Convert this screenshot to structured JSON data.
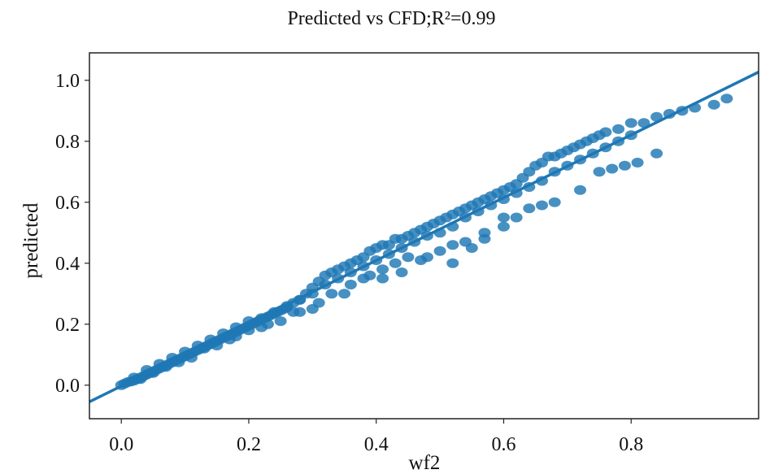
{
  "chart_data": {
    "type": "scatter",
    "title": "Predicted vs CFD;R²=0.99",
    "xlabel": "wf2",
    "ylabel": "predicted",
    "xlim": [
      -0.05,
      1.0
    ],
    "ylim": [
      -0.11,
      1.09
    ],
    "x_ticks": [
      "0.0",
      "0.2",
      "0.4",
      "0.6",
      "0.8"
    ],
    "y_ticks": [
      "0.0",
      "0.2",
      "0.4",
      "0.6",
      "0.8",
      "1.0"
    ],
    "grid": false,
    "colors": {
      "points": "#1f77b4",
      "fit_line": "#1f77b4",
      "axes": "#222222"
    },
    "fit_line": {
      "slope": 1.03,
      "intercept": -0.003
    },
    "points": [
      [
        0.0,
        0.0
      ],
      [
        0.005,
        0.005
      ],
      [
        0.01,
        0.01
      ],
      [
        0.015,
        0.012
      ],
      [
        0.02,
        0.015
      ],
      [
        0.025,
        0.02
      ],
      [
        0.03,
        0.025
      ],
      [
        0.035,
        0.03
      ],
      [
        0.04,
        0.035
      ],
      [
        0.045,
        0.04
      ],
      [
        0.05,
        0.045
      ],
      [
        0.055,
        0.05
      ],
      [
        0.06,
        0.055
      ],
      [
        0.065,
        0.06
      ],
      [
        0.07,
        0.065
      ],
      [
        0.075,
        0.07
      ],
      [
        0.08,
        0.075
      ],
      [
        0.085,
        0.08
      ],
      [
        0.09,
        0.085
      ],
      [
        0.095,
        0.09
      ],
      [
        0.1,
        0.095
      ],
      [
        0.105,
        0.1
      ],
      [
        0.11,
        0.105
      ],
      [
        0.115,
        0.11
      ],
      [
        0.12,
        0.115
      ],
      [
        0.125,
        0.12
      ],
      [
        0.13,
        0.125
      ],
      [
        0.135,
        0.13
      ],
      [
        0.14,
        0.135
      ],
      [
        0.145,
        0.14
      ],
      [
        0.15,
        0.145
      ],
      [
        0.155,
        0.15
      ],
      [
        0.16,
        0.155
      ],
      [
        0.165,
        0.16
      ],
      [
        0.17,
        0.165
      ],
      [
        0.175,
        0.17
      ],
      [
        0.18,
        0.175
      ],
      [
        0.185,
        0.18
      ],
      [
        0.19,
        0.185
      ],
      [
        0.195,
        0.19
      ],
      [
        0.2,
        0.195
      ],
      [
        0.205,
        0.2
      ],
      [
        0.21,
        0.205
      ],
      [
        0.215,
        0.21
      ],
      [
        0.22,
        0.215
      ],
      [
        0.225,
        0.22
      ],
      [
        0.23,
        0.225
      ],
      [
        0.235,
        0.23
      ],
      [
        0.24,
        0.235
      ],
      [
        0.245,
        0.24
      ],
      [
        0.25,
        0.245
      ],
      [
        0.255,
        0.25
      ],
      [
        0.26,
        0.255
      ],
      [
        0.27,
        0.27
      ],
      [
        0.28,
        0.28
      ],
      [
        0.29,
        0.3
      ],
      [
        0.3,
        0.32
      ],
      [
        0.31,
        0.34
      ],
      [
        0.32,
        0.36
      ],
      [
        0.33,
        0.37
      ],
      [
        0.34,
        0.38
      ],
      [
        0.35,
        0.39
      ],
      [
        0.36,
        0.4
      ],
      [
        0.37,
        0.41
      ],
      [
        0.38,
        0.42
      ],
      [
        0.39,
        0.44
      ],
      [
        0.4,
        0.45
      ],
      [
        0.41,
        0.46
      ],
      [
        0.42,
        0.46
      ],
      [
        0.43,
        0.48
      ],
      [
        0.44,
        0.48
      ],
      [
        0.45,
        0.49
      ],
      [
        0.46,
        0.5
      ],
      [
        0.47,
        0.51
      ],
      [
        0.48,
        0.52
      ],
      [
        0.49,
        0.53
      ],
      [
        0.5,
        0.54
      ],
      [
        0.51,
        0.55
      ],
      [
        0.52,
        0.56
      ],
      [
        0.53,
        0.57
      ],
      [
        0.54,
        0.58
      ],
      [
        0.55,
        0.59
      ],
      [
        0.56,
        0.6
      ],
      [
        0.57,
        0.61
      ],
      [
        0.58,
        0.62
      ],
      [
        0.59,
        0.63
      ],
      [
        0.6,
        0.64
      ],
      [
        0.61,
        0.65
      ],
      [
        0.62,
        0.66
      ],
      [
        0.63,
        0.68
      ],
      [
        0.64,
        0.7
      ],
      [
        0.65,
        0.72
      ],
      [
        0.66,
        0.73
      ],
      [
        0.67,
        0.75
      ],
      [
        0.68,
        0.75
      ],
      [
        0.69,
        0.76
      ],
      [
        0.7,
        0.77
      ],
      [
        0.71,
        0.78
      ],
      [
        0.72,
        0.79
      ],
      [
        0.73,
        0.8
      ],
      [
        0.74,
        0.81
      ],
      [
        0.75,
        0.82
      ],
      [
        0.76,
        0.83
      ],
      [
        0.78,
        0.84
      ],
      [
        0.8,
        0.86
      ],
      [
        0.82,
        0.86
      ],
      [
        0.84,
        0.88
      ],
      [
        0.86,
        0.89
      ],
      [
        0.88,
        0.9
      ],
      [
        0.9,
        0.91
      ],
      [
        0.93,
        0.92
      ],
      [
        0.95,
        0.94
      ],
      [
        0.02,
        0.025
      ],
      [
        0.04,
        0.05
      ],
      [
        0.06,
        0.07
      ],
      [
        0.08,
        0.09
      ],
      [
        0.1,
        0.11
      ],
      [
        0.12,
        0.13
      ],
      [
        0.14,
        0.15
      ],
      [
        0.16,
        0.17
      ],
      [
        0.18,
        0.19
      ],
      [
        0.2,
        0.21
      ],
      [
        0.22,
        0.22
      ],
      [
        0.24,
        0.24
      ],
      [
        0.26,
        0.26
      ],
      [
        0.28,
        0.28
      ],
      [
        0.3,
        0.3
      ],
      [
        0.32,
        0.33
      ],
      [
        0.34,
        0.35
      ],
      [
        0.36,
        0.37
      ],
      [
        0.38,
        0.39
      ],
      [
        0.4,
        0.41
      ],
      [
        0.42,
        0.43
      ],
      [
        0.44,
        0.45
      ],
      [
        0.46,
        0.47
      ],
      [
        0.48,
        0.49
      ],
      [
        0.5,
        0.5
      ],
      [
        0.52,
        0.52
      ],
      [
        0.54,
        0.55
      ],
      [
        0.56,
        0.57
      ],
      [
        0.58,
        0.59
      ],
      [
        0.6,
        0.61
      ],
      [
        0.62,
        0.63
      ],
      [
        0.64,
        0.65
      ],
      [
        0.66,
        0.67
      ],
      [
        0.68,
        0.7
      ],
      [
        0.7,
        0.72
      ],
      [
        0.72,
        0.74
      ],
      [
        0.74,
        0.76
      ],
      [
        0.76,
        0.78
      ],
      [
        0.78,
        0.8
      ],
      [
        0.8,
        0.82
      ],
      [
        0.15,
        0.13
      ],
      [
        0.18,
        0.16
      ],
      [
        0.22,
        0.19
      ],
      [
        0.25,
        0.21
      ],
      [
        0.28,
        0.24
      ],
      [
        0.31,
        0.27
      ],
      [
        0.33,
        0.3
      ],
      [
        0.36,
        0.33
      ],
      [
        0.38,
        0.35
      ],
      [
        0.41,
        0.38
      ],
      [
        0.43,
        0.4
      ],
      [
        0.45,
        0.42
      ],
      [
        0.47,
        0.41
      ],
      [
        0.5,
        0.44
      ],
      [
        0.52,
        0.46
      ],
      [
        0.54,
        0.47
      ],
      [
        0.55,
        0.45
      ],
      [
        0.57,
        0.5
      ],
      [
        0.6,
        0.55
      ],
      [
        0.62,
        0.55
      ],
      [
        0.64,
        0.58
      ],
      [
        0.66,
        0.59
      ],
      [
        0.68,
        0.6
      ],
      [
        0.72,
        0.64
      ],
      [
        0.75,
        0.7
      ],
      [
        0.77,
        0.71
      ],
      [
        0.79,
        0.72
      ],
      [
        0.81,
        0.73
      ],
      [
        0.84,
        0.76
      ],
      [
        0.6,
        0.52
      ],
      [
        0.57,
        0.48
      ],
      [
        0.52,
        0.4
      ],
      [
        0.48,
        0.42
      ],
      [
        0.44,
        0.37
      ],
      [
        0.41,
        0.35
      ],
      [
        0.39,
        0.36
      ],
      [
        0.35,
        0.3
      ],
      [
        0.3,
        0.25
      ],
      [
        0.27,
        0.24
      ],
      [
        0.23,
        0.2
      ],
      [
        0.2,
        0.18
      ],
      [
        0.17,
        0.15
      ],
      [
        0.13,
        0.12
      ],
      [
        0.11,
        0.09
      ],
      [
        0.09,
        0.075
      ],
      [
        0.07,
        0.06
      ],
      [
        0.05,
        0.04
      ],
      [
        0.03,
        0.02
      ]
    ]
  }
}
